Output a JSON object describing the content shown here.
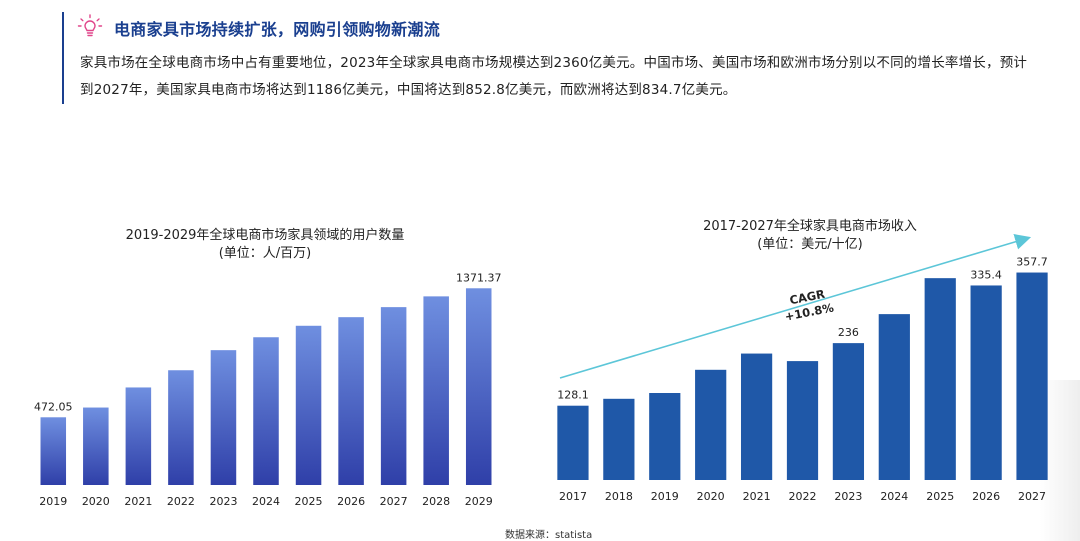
{
  "header": {
    "icon": "lightbulb-icon",
    "title": "电商家具市场持续扩张，网购引领购物新潮流",
    "description": "家具市场在全球电商市场中占有重要地位，2023年全球家具电商市场规模达到2360亿美元。中国市场、美国市场和欧洲市场分别以不同的增长率增长，预计到2027年，美国家具电商市场将达到1186亿美元，中国将达到852.8亿美元，而欧洲将达到834.7亿美元。"
  },
  "colors": {
    "title": "#1a3f8f",
    "left_bar_top": "#6f8fe0",
    "left_bar_bottom": "#2f3fa8",
    "right_bar": "#1f58a8",
    "arrow": "#5cc6d8"
  },
  "chart_data": [
    {
      "type": "bar",
      "title": "2019-2029年全球电商市场家具领域的用户数量",
      "subtitle": "(单位：人/百万)",
      "categories": [
        "2019",
        "2020",
        "2021",
        "2022",
        "2023",
        "2024",
        "2025",
        "2026",
        "2027",
        "2028",
        "2029"
      ],
      "values": [
        472.05,
        540,
        680,
        800,
        940,
        1030,
        1110,
        1170,
        1240,
        1315,
        1371.37
      ],
      "data_labels": {
        "0": "472.05",
        "10": "1371.37"
      },
      "ylim": [
        0,
        1450
      ],
      "grid": false
    },
    {
      "type": "bar",
      "title": "2017-2027年全球家具电商市场收入",
      "subtitle": "(单位：美元/十亿)",
      "categories": [
        "2017",
        "2018",
        "2019",
        "2020",
        "2021",
        "2022",
        "2023",
        "2024",
        "2025",
        "2026",
        "2027"
      ],
      "values": [
        128.1,
        140,
        150,
        190,
        218,
        205,
        236,
        286,
        348,
        335.4,
        357.7
      ],
      "data_labels": {
        "0": "128.1",
        "6": "236",
        "9": "335.4",
        "10": "357.7"
      },
      "annotation": {
        "line1": "CAGR",
        "line2": "+10.8%"
      },
      "ylim": [
        0,
        400
      ],
      "grid": false
    }
  ],
  "source": "数据来源：statista"
}
